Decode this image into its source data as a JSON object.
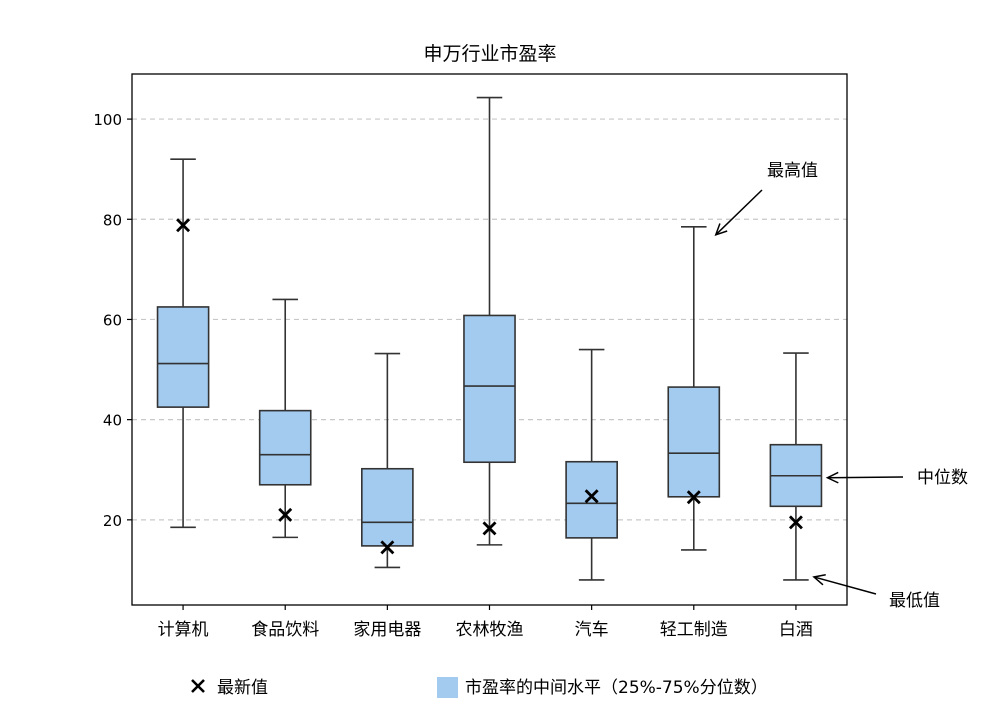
{
  "chart_data": {
    "type": "box",
    "title": "申万行业市盈率",
    "xlabel": "",
    "ylabel": "",
    "ylim": [
      3,
      109
    ],
    "yticks": [
      20,
      40,
      60,
      80,
      100
    ],
    "grid": "y-dashed",
    "box_color": "#a3cbf0",
    "line_color": "#333333",
    "categories": [
      "计算机",
      "食品饮料",
      "家用电器",
      "农林牧渔",
      "汽车",
      "轻工制造",
      "白酒"
    ],
    "series": [
      {
        "category": "计算机",
        "min": 18.5,
        "q1": 42.5,
        "median": 51.2,
        "q3": 62.5,
        "max": 92.0,
        "latest": 78.8
      },
      {
        "category": "食品饮料",
        "min": 16.5,
        "q1": 27.0,
        "median": 33.0,
        "q3": 41.8,
        "max": 64.0,
        "latest": 21.0
      },
      {
        "category": "家用电器",
        "min": 10.5,
        "q1": 14.8,
        "median": 19.5,
        "q3": 30.2,
        "max": 53.2,
        "latest": 14.5
      },
      {
        "category": "农林牧渔",
        "min": 15.0,
        "q1": 31.5,
        "median": 46.7,
        "q3": 60.8,
        "max": 104.3,
        "latest": 18.3
      },
      {
        "category": "汽车",
        "min": 8.0,
        "q1": 16.4,
        "median": 23.3,
        "q3": 31.6,
        "max": 54.0,
        "latest": 24.7
      },
      {
        "category": "轻工制造",
        "min": 14.0,
        "q1": 24.6,
        "median": 33.3,
        "q3": 46.5,
        "max": 78.5,
        "latest": 24.5
      },
      {
        "category": "白酒",
        "min": 8.0,
        "q1": 22.7,
        "median": 28.8,
        "q3": 35.0,
        "max": 53.3,
        "latest": 19.5
      }
    ],
    "annotations": {
      "max": {
        "text": "最高值",
        "target_category": "轻工制造",
        "target": "max"
      },
      "median": {
        "text": "中位数",
        "target_category": "白酒",
        "target": "median"
      },
      "min": {
        "text": "最低值",
        "target_category": "白酒",
        "target": "min"
      }
    },
    "legend": {
      "placement": "bottom",
      "latest_label": "最新值",
      "box_label": "市盈率的中间水平（25%-75%分位数）"
    }
  }
}
